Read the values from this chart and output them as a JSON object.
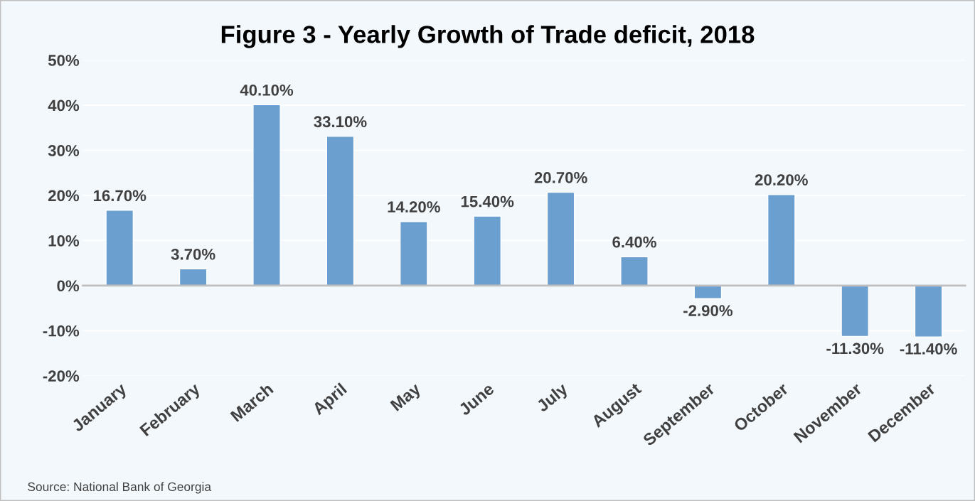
{
  "chart_data": {
    "type": "bar",
    "title": "Figure 3 - Yearly Growth of Trade deficit, 2018",
    "categories": [
      "January",
      "February",
      "March",
      "April",
      "May",
      "June",
      "July",
      "August",
      "September",
      "October",
      "November",
      "December"
    ],
    "values": [
      16.7,
      3.7,
      40.1,
      33.1,
      14.2,
      15.4,
      20.7,
      6.4,
      -2.9,
      20.2,
      -11.3,
      -11.4
    ],
    "value_labels": [
      "16.70%",
      "3.70%",
      "40.10%",
      "33.10%",
      "14.20%",
      "15.40%",
      "20.70%",
      "6.40%",
      "-2.90%",
      "20.20%",
      "-11.30%",
      "-11.40%"
    ],
    "color": "#6a9fcf",
    "ylim": [
      -20,
      50
    ],
    "yticks": [
      {
        "value": -20,
        "label": "-20%"
      },
      {
        "value": -10,
        "label": "-10%"
      },
      {
        "value": 0,
        "label": "0%"
      },
      {
        "value": 10,
        "label": "10%"
      },
      {
        "value": 20,
        "label": "20%"
      },
      {
        "value": 30,
        "label": "30%"
      },
      {
        "value": 40,
        "label": "40%"
      },
      {
        "value": 50,
        "label": "50%"
      }
    ],
    "grid": "y",
    "annotations": [
      "Source: National Bank of Georgia"
    ]
  }
}
